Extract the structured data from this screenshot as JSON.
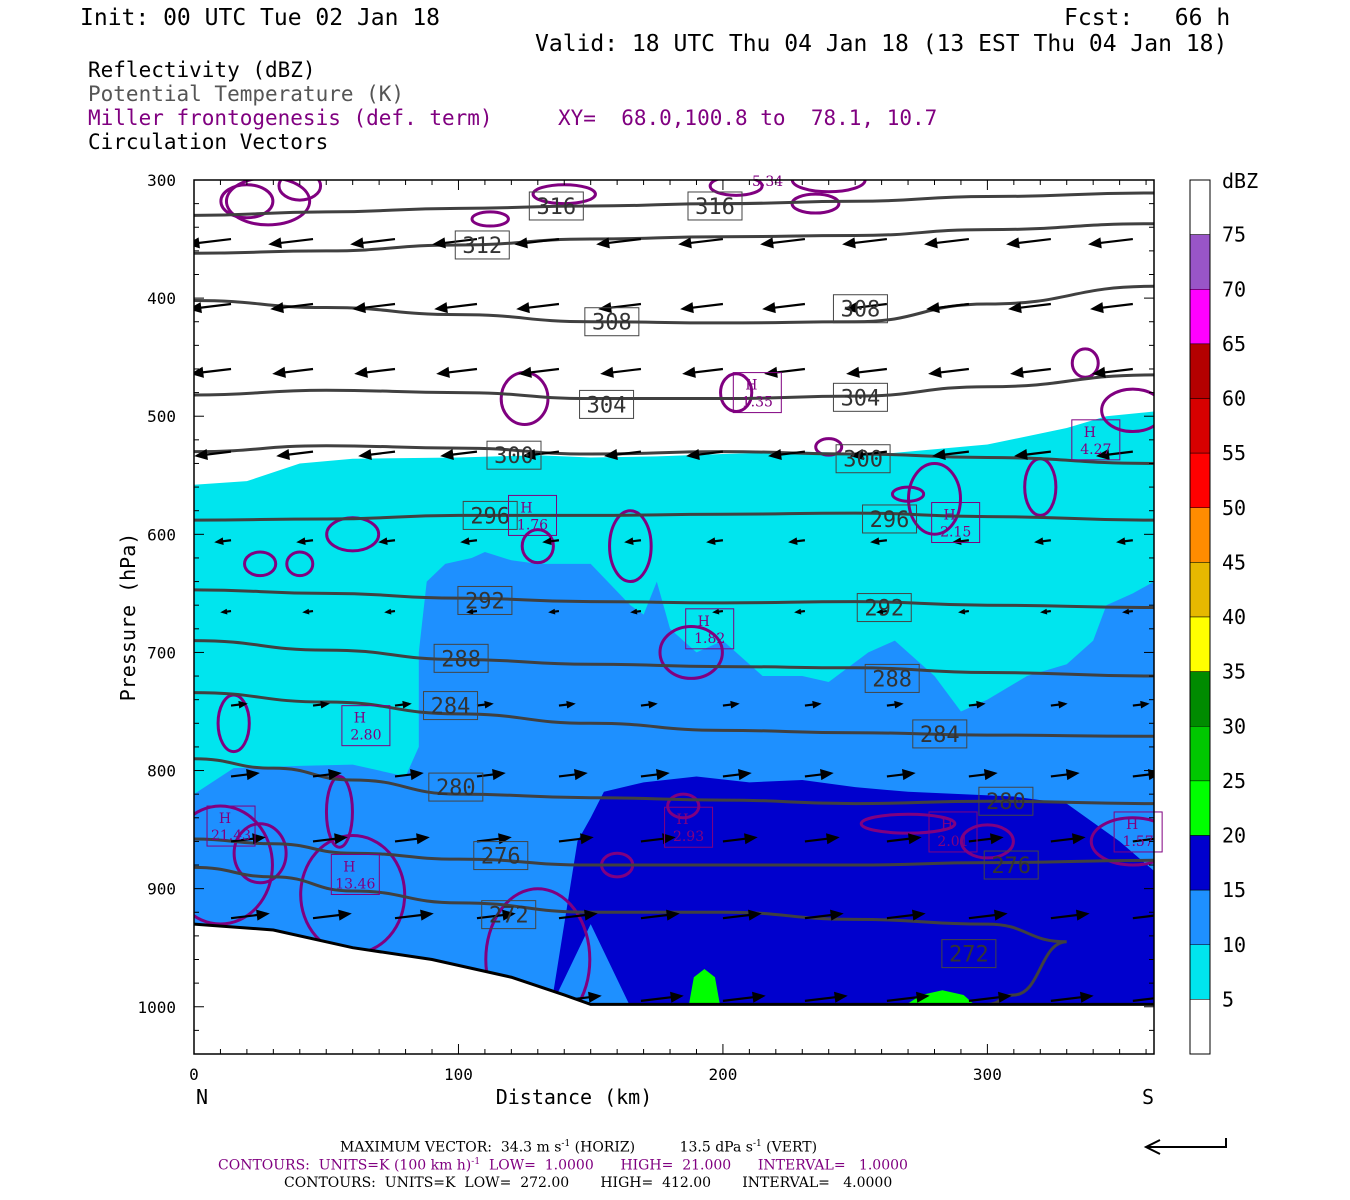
{
  "header": {
    "init": "Init: 00 UTC Tue 02 Jan 18",
    "fcst": "Fcst:   66 h",
    "valid": "Valid: 18 UTC Thu 04 Jan 18 (13 EST Thu 04 Jan 18)"
  },
  "legend": {
    "reflectivity": "Reflectivity (dBZ)",
    "theta": "Potential Temperature (K)",
    "miller": "Miller frontogenesis (def. term)",
    "xy": "XY=  68.0,100.8 to  78.1, 10.7",
    "vectors": "Circulation Vectors"
  },
  "colors": {
    "miller": "#800080",
    "theta": "#404040",
    "axis": "#000000"
  },
  "chart_data": {
    "type": "cross-section",
    "xlabel": "Distance (km)",
    "ylabel": "Pressure (hPa)",
    "xlim": [
      0,
      363
    ],
    "ylim": [
      1040,
      300
    ],
    "x_ticks": [
      0,
      100,
      200,
      300
    ],
    "y_ticks": [
      300,
      400,
      500,
      600,
      700,
      800,
      900,
      1000
    ],
    "left_end_label": "N",
    "right_end_label": "S",
    "colorbar": {
      "title": "dBZ",
      "levels": [
        5,
        10,
        15,
        20,
        25,
        30,
        35,
        40,
        45,
        50,
        55,
        60,
        65,
        70,
        75
      ],
      "colors": [
        "#ffffff",
        "#00e5ee",
        "#1e90ff",
        "#0000cd",
        "#00ff00",
        "#00c800",
        "#008b00",
        "#ffff00",
        "#e6b800",
        "#ff8c00",
        "#ff0000",
        "#d70000",
        "#b40000",
        "#ff00ff",
        "#9955c8"
      ]
    },
    "theta_contours": [
      {
        "level": 316,
        "points": [
          [
            0,
            330
          ],
          [
            50,
            327
          ],
          [
            100,
            324
          ],
          [
            150,
            322
          ],
          [
            200,
            320
          ],
          [
            250,
            318
          ],
          [
            300,
            314
          ],
          [
            363,
            311
          ]
        ]
      },
      {
        "level": 312,
        "points": [
          [
            0,
            362
          ],
          [
            50,
            360
          ],
          [
            100,
            355
          ],
          [
            150,
            350
          ],
          [
            200,
            348
          ],
          [
            250,
            347
          ],
          [
            300,
            342
          ],
          [
            363,
            337
          ]
        ]
      },
      {
        "level": 308,
        "points": [
          [
            0,
            402
          ],
          [
            50,
            408
          ],
          [
            100,
            414
          ],
          [
            150,
            420
          ],
          [
            200,
            421
          ],
          [
            250,
            420
          ],
          [
            300,
            405
          ],
          [
            363,
            390
          ]
        ]
      },
      {
        "level": 304,
        "points": [
          [
            0,
            482
          ],
          [
            50,
            478
          ],
          [
            100,
            480
          ],
          [
            150,
            485
          ],
          [
            200,
            485
          ],
          [
            250,
            483
          ],
          [
            300,
            475
          ],
          [
            363,
            465
          ]
        ]
      },
      {
        "level": 300,
        "points": [
          [
            0,
            530
          ],
          [
            50,
            525
          ],
          [
            100,
            527
          ],
          [
            150,
            532
          ],
          [
            200,
            530
          ],
          [
            250,
            532
          ],
          [
            300,
            535
          ],
          [
            363,
            540
          ]
        ]
      },
      {
        "level": 296,
        "points": [
          [
            0,
            588
          ],
          [
            50,
            587
          ],
          [
            100,
            584
          ],
          [
            150,
            584
          ],
          [
            200,
            583
          ],
          [
            250,
            582
          ],
          [
            300,
            585
          ],
          [
            363,
            588
          ]
        ]
      },
      {
        "level": 292,
        "points": [
          [
            0,
            647
          ],
          [
            50,
            650
          ],
          [
            100,
            654
          ],
          [
            150,
            657
          ],
          [
            200,
            658
          ],
          [
            250,
            657
          ],
          [
            300,
            660
          ],
          [
            363,
            662
          ]
        ]
      },
      {
        "level": 288,
        "points": [
          [
            0,
            690
          ],
          [
            50,
            698
          ],
          [
            100,
            706
          ],
          [
            150,
            710
          ],
          [
            200,
            712
          ],
          [
            250,
            713
          ],
          [
            300,
            717
          ],
          [
            363,
            720
          ]
        ]
      },
      {
        "level": 284,
        "points": [
          [
            0,
            734
          ],
          [
            50,
            742
          ],
          [
            100,
            752
          ],
          [
            150,
            760
          ],
          [
            200,
            766
          ],
          [
            250,
            768
          ],
          [
            300,
            770
          ],
          [
            363,
            771
          ]
        ]
      },
      {
        "level": 280,
        "points": [
          [
            0,
            790
          ],
          [
            30,
            798
          ],
          [
            60,
            808
          ],
          [
            100,
            820
          ],
          [
            150,
            823
          ],
          [
            200,
            825
          ],
          [
            250,
            828
          ],
          [
            300,
            826
          ],
          [
            363,
            828
          ]
        ]
      },
      {
        "level": 276,
        "points": [
          [
            0,
            858
          ],
          [
            30,
            862
          ],
          [
            60,
            870
          ],
          [
            100,
            875
          ],
          [
            150,
            880
          ],
          [
            200,
            880
          ],
          [
            250,
            880
          ],
          [
            300,
            878
          ],
          [
            363,
            876
          ]
        ]
      },
      {
        "level": 272,
        "points": [
          [
            0,
            882
          ],
          [
            30,
            890
          ],
          [
            60,
            902
          ],
          [
            100,
            912
          ],
          [
            150,
            920
          ],
          [
            200,
            920
          ],
          [
            250,
            926
          ],
          [
            300,
            930
          ],
          [
            330,
            945
          ],
          [
            310,
            990
          ],
          [
            300,
            998
          ]
        ]
      }
    ],
    "theta_labels": [
      {
        "text": "316",
        "x": 137,
        "p": 322
      },
      {
        "text": "316",
        "x": 197,
        "p": 322
      },
      {
        "text": "312",
        "x": 109,
        "p": 355
      },
      {
        "text": "308",
        "x": 158,
        "p": 420
      },
      {
        "text": "308",
        "x": 252,
        "p": 409
      },
      {
        "text": "304",
        "x": 156,
        "p": 490
      },
      {
        "text": "304",
        "x": 252,
        "p": 484
      },
      {
        "text": "300",
        "x": 121,
        "p": 533
      },
      {
        "text": "300",
        "x": 253,
        "p": 536
      },
      {
        "text": "296",
        "x": 112,
        "p": 584
      },
      {
        "text": "296",
        "x": 263,
        "p": 587
      },
      {
        "text": "292",
        "x": 110,
        "p": 656
      },
      {
        "text": "292",
        "x": 261,
        "p": 662
      },
      {
        "text": "288",
        "x": 101,
        "p": 705
      },
      {
        "text": "288",
        "x": 264,
        "p": 722
      },
      {
        "text": "284",
        "x": 97,
        "p": 745
      },
      {
        "text": "284",
        "x": 282,
        "p": 769
      },
      {
        "text": "280",
        "x": 99,
        "p": 814
      },
      {
        "text": "280",
        "x": 307,
        "p": 826
      },
      {
        "text": "276",
        "x": 116,
        "p": 872
      },
      {
        "text": "276",
        "x": 309,
        "p": 880
      },
      {
        "text": "272",
        "x": 119,
        "p": 922
      },
      {
        "text": "272",
        "x": 293,
        "p": 955
      }
    ],
    "max_labels": [
      {
        "value": "1.35",
        "x": 213,
        "p": 480
      },
      {
        "value": "4.27",
        "x": 341,
        "p": 520
      },
      {
        "value": "1.76",
        "x": 128,
        "p": 584
      },
      {
        "value": "2.15",
        "x": 288,
        "p": 590
      },
      {
        "value": "1.82",
        "x": 195,
        "p": 680
      },
      {
        "value": "2.80",
        "x": 65,
        "p": 762
      },
      {
        "value": "21.43",
        "x": 14,
        "p": 847
      },
      {
        "value": "2.93",
        "x": 187,
        "p": 848
      },
      {
        "value": "2.01",
        "x": 287,
        "p": 852
      },
      {
        "value": "1.57",
        "x": 357,
        "p": 852
      },
      {
        "value": "13.46",
        "x": 61,
        "p": 888
      }
    ],
    "max_top_label": "5.34"
  },
  "footer": {
    "max_vector": "MAXIMUM VECTOR:  34.3 m s",
    "horiz": " (HORIZ)",
    "vert_val": "13.5 dPa s",
    "vert": " (VERT)",
    "exp": "-1",
    "contours1_a": "CONTOURS:  UNITS=K (100 km h)",
    "contours1_b": "  LOW=  1.0000      HIGH=  21.000      INTERVAL=   1.0000",
    "contours2": "CONTOURS:  UNITS=K  LOW=  272.00       HIGH=  412.00       INTERVAL=   4.0000"
  }
}
